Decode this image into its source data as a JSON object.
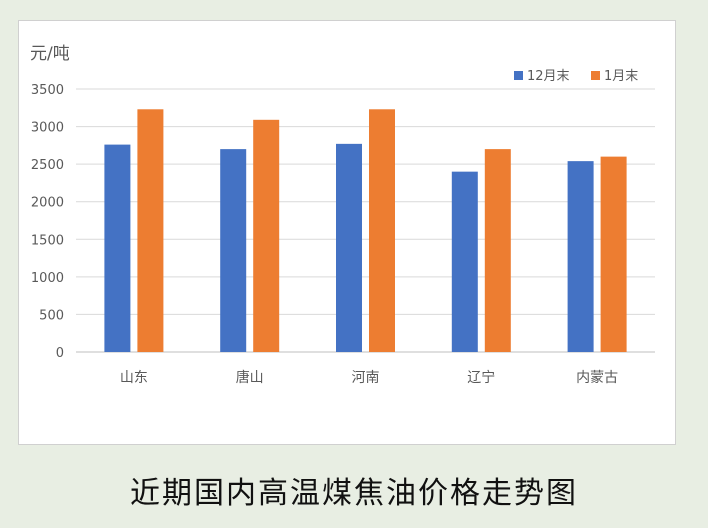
{
  "caption": "近期国内高温煤焦油价格走势图",
  "chart_data": {
    "type": "bar",
    "ylabel": "元/吨",
    "ylim": [
      0,
      3500
    ],
    "yticks": [
      "0",
      "500",
      "1000",
      "1500",
      "2000",
      "2500",
      "3000",
      "3500"
    ],
    "grid": true,
    "legend_position": "top-right",
    "categories": [
      "山东",
      "唐山",
      "河南",
      "辽宁",
      "内蒙古"
    ],
    "series": [
      {
        "name": "12月末",
        "color": "#4472c4",
        "values": [
          2760,
          2700,
          2770,
          2400,
          2540
        ]
      },
      {
        "name": "1月末",
        "color": "#ed7d31",
        "values": [
          3230,
          3090,
          3230,
          2700,
          2600
        ]
      }
    ]
  }
}
